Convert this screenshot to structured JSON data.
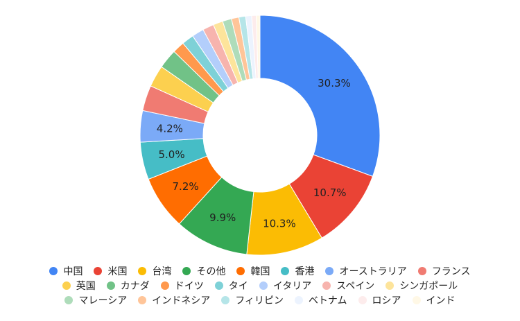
{
  "chart_data": {
    "type": "pie",
    "donut": true,
    "title": "",
    "categories": [
      "中国",
      "米国",
      "台湾",
      "その他",
      "韓国",
      "香港",
      "オーストラリア",
      "フランス",
      "英国",
      "カナダ",
      "ドイツ",
      "タイ",
      "イタリア",
      "スペイン",
      "シンガポール",
      "マレーシア",
      "インドネシア",
      "フィリピン",
      "ベトナム",
      "ロシア",
      "インド"
    ],
    "values": [
      30.3,
      10.7,
      10.3,
      9.9,
      7.2,
      5.0,
      4.2,
      3.4,
      2.9,
      2.6,
      1.6,
      1.6,
      1.6,
      1.5,
      1.3,
      1.2,
      1.0,
      0.9,
      0.8,
      0.6,
      0.5
    ],
    "value_labels": [
      "30.3%",
      "10.7%",
      "10.3%",
      "9.9%",
      "7.2%",
      "5.0%",
      "4.2%",
      "",
      "",
      "",
      "",
      "",
      "",
      "",
      "",
      "",
      "",
      "",
      "",
      "",
      ""
    ],
    "colors": [
      "#4285f4",
      "#ea4335",
      "#fbbc04",
      "#34a853",
      "#ff6d01",
      "#46bdc6",
      "#7baaf7",
      "#f07b72",
      "#fcd04f",
      "#71c287",
      "#ff994d",
      "#7ed1d7",
      "#b3cefb",
      "#f7b4ae",
      "#fde49b",
      "#aedcba",
      "#ffc599",
      "#b5e5e8",
      "#ecf3fe",
      "#fdecec",
      "#fff8e6"
    ],
    "legend_position": "bottom",
    "legend_rows": [
      [
        0,
        1,
        2,
        3,
        4,
        5,
        6,
        7
      ],
      [
        8,
        9,
        10,
        11,
        12,
        13,
        14
      ],
      [
        15,
        16,
        17,
        18,
        19,
        20
      ]
    ]
  }
}
